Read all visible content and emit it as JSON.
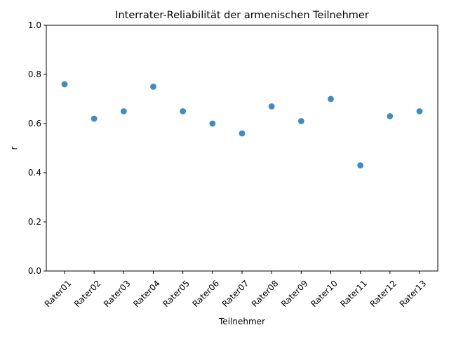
{
  "chart_data": {
    "type": "scatter",
    "title": "Interrater-Reliabilität der armenischen Teilnehmer",
    "xlabel": "Teilnehmer",
    "ylabel": "r",
    "categories": [
      "Rater01",
      "Rater02",
      "Rater03",
      "Rater04",
      "Rater05",
      "Rater06",
      "Rater07",
      "Rater08",
      "Rater09",
      "Rater10",
      "Rater11",
      "Rater12",
      "Rater13"
    ],
    "values": [
      0.76,
      0.62,
      0.65,
      0.75,
      0.65,
      0.6,
      0.56,
      0.67,
      0.61,
      0.7,
      0.43,
      0.63,
      0.65
    ],
    "ylim": [
      0.0,
      1.0
    ],
    "yticks": [
      "0.0",
      "0.2",
      "0.4",
      "0.6",
      "0.8",
      "1.0"
    ],
    "grid": false,
    "point_color": "#1f77b4"
  }
}
